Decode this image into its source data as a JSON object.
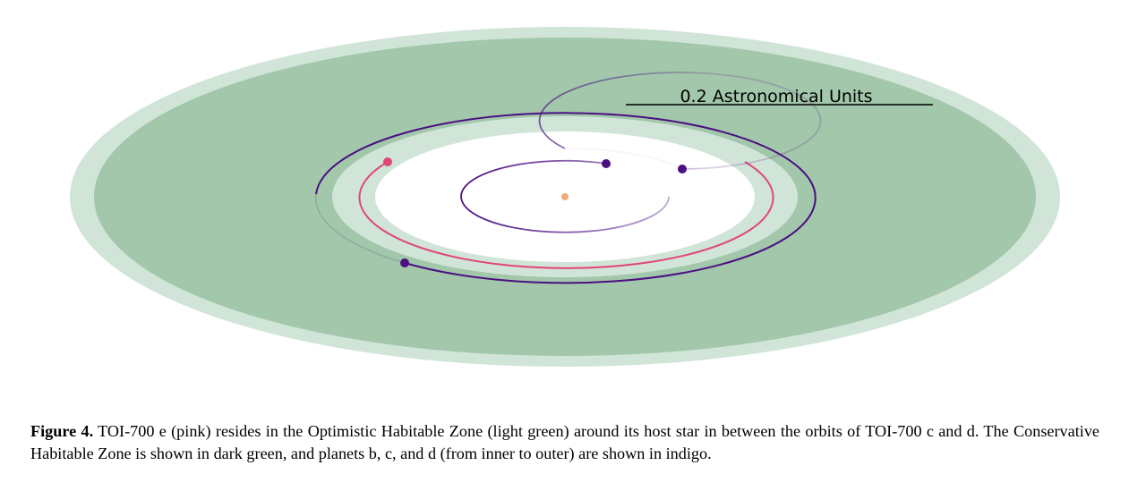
{
  "figure": {
    "scale_bar_label": "0.2 Astronomical Units",
    "colors": {
      "optimistic_hz": "#d0e5d8",
      "conservative_hz": "#a2c7aa",
      "planet_indigo": "#4b0f82",
      "planet_pink": "#e0457b",
      "star": "#f0ad7a",
      "scale_bar": "#000000"
    }
  },
  "caption": {
    "label": "Figure 4.",
    "text": "TOI-700 e (pink) resides in the Optimistic Habitable Zone (light green) around its host star in between the orbits of TOI-700 c and d. The Conservative Habitable Zone is shown in dark green, and planets b, c, and d (from inner to outer) are shown in indigo."
  }
}
